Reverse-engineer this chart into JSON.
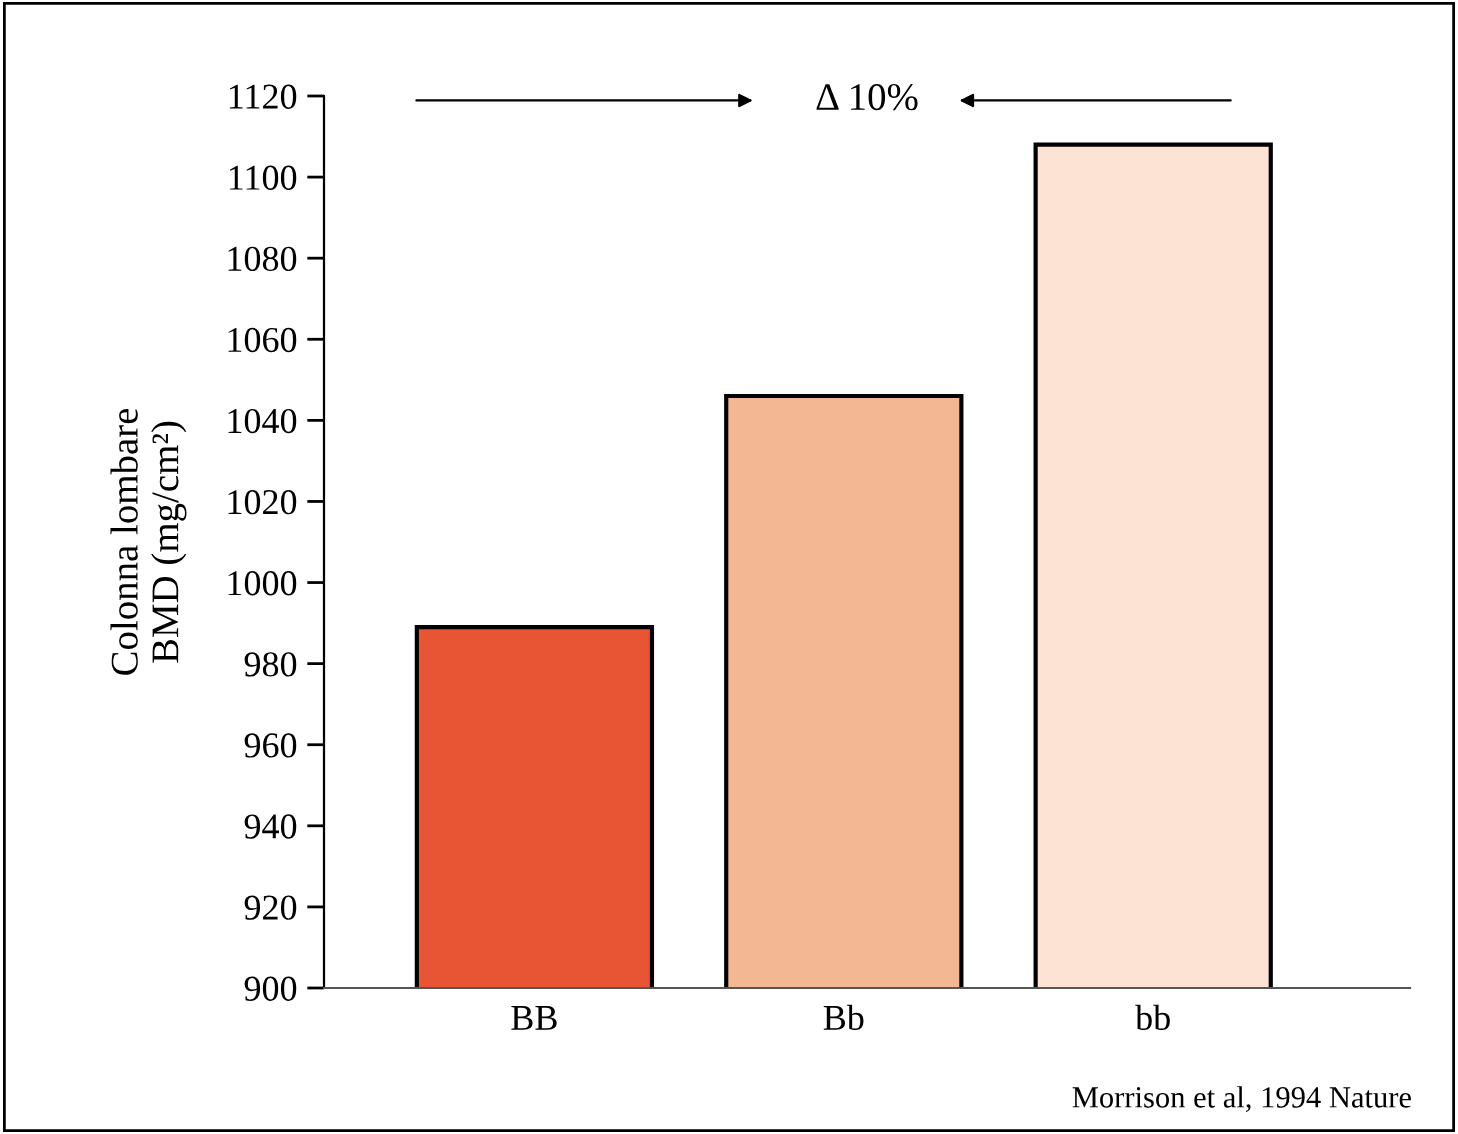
{
  "chart_data": {
    "type": "bar",
    "ylabel": "Colonna lombare\nBMD (mg/cm²)",
    "categories": [
      "BB",
      "Bb",
      "bb"
    ],
    "values": [
      989,
      1046,
      1108
    ],
    "colors": [
      "#e85535",
      "#f4b794",
      "#fde3d4"
    ],
    "ylim": [
      900,
      1120
    ],
    "yticks": [
      900,
      920,
      940,
      960,
      980,
      1000,
      1020,
      1040,
      1060,
      1080,
      1100,
      1120
    ],
    "grid": false,
    "annotations": [
      "Δ 10%",
      "Morrison et al, 1994 Nature"
    ]
  }
}
